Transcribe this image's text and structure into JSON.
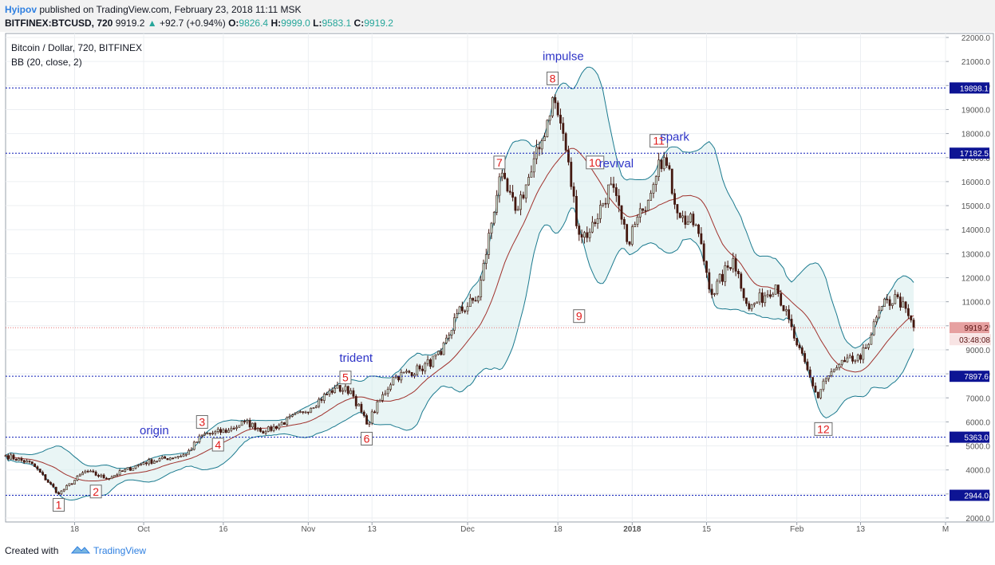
{
  "header": {
    "author": "Hyipov",
    "published": "published on TradingView.com, February 23, 2018 11:11 MSK",
    "symbol": "BITFINEX:BTCUSD, 720",
    "last": "9919.2",
    "change": "+92.7 (+0.94%)",
    "open_label": "O:",
    "open": "9826.4",
    "high_label": "H:",
    "high": "9999.0",
    "low_label": "L:",
    "low": "9583.1",
    "close_label": "C:",
    "close": "9919.2"
  },
  "footer": {
    "created_with": "Created with",
    "brand": "TradingView"
  },
  "chart_data": {
    "type": "candlestick",
    "title": "Bitcoin / Dollar, 720, BITFINEX",
    "indicator": "BB (20, close, 2)",
    "ylim": [
      2000,
      22500
    ],
    "y_ticks": [
      2000,
      3000,
      4000,
      5000,
      6000,
      7000,
      8000,
      9000,
      10000,
      11000,
      12000,
      13000,
      14000,
      15000,
      16000,
      17000,
      18000,
      19000,
      20000,
      21000,
      22000
    ],
    "y_tick_labels": [
      "2000.0",
      "3000.0",
      "4000.0",
      "5000.0",
      "6000.0",
      "7000.0",
      "8000.0",
      "9000.0",
      "10000.0",
      "11000.0",
      "12000.0",
      "13000.0",
      "14000.0",
      "15000.0",
      "16000.0",
      "17000.0",
      "18000.0",
      "19000.0",
      "20000.0",
      "21000.0",
      "22000.0"
    ],
    "x_range": [
      "2017-09-05",
      "2018-03-01"
    ],
    "x_ticks": [
      {
        "date": "2017-09-18",
        "label": "18",
        "bold": false
      },
      {
        "date": "2017-10-01",
        "label": "Oct",
        "bold": false
      },
      {
        "date": "2017-10-16",
        "label": "16",
        "bold": false
      },
      {
        "date": "2017-11-01",
        "label": "Nov",
        "bold": false
      },
      {
        "date": "2017-11-13",
        "label": "13",
        "bold": false
      },
      {
        "date": "2017-12-01",
        "label": "Dec",
        "bold": false
      },
      {
        "date": "2017-12-18",
        "label": "18",
        "bold": false
      },
      {
        "date": "2018-01-01",
        "label": "2018",
        "bold": true
      },
      {
        "date": "2018-01-15",
        "label": "15",
        "bold": false
      },
      {
        "date": "2018-02-01",
        "label": "Feb",
        "bold": false
      },
      {
        "date": "2018-02-13",
        "label": "13",
        "bold": false
      },
      {
        "date": "2018-03-01",
        "label": "M",
        "bold": false
      }
    ],
    "key_points": [
      {
        "date": "2017-09-05",
        "price": 4600
      },
      {
        "date": "2017-09-10",
        "price": 4250
      },
      {
        "date": "2017-09-15",
        "price": 3000
      },
      {
        "date": "2017-09-20",
        "price": 3950
      },
      {
        "date": "2017-09-24",
        "price": 3650
      },
      {
        "date": "2017-10-01",
        "price": 4300
      },
      {
        "date": "2017-10-09",
        "price": 4650
      },
      {
        "date": "2017-10-12",
        "price": 5450
      },
      {
        "date": "2017-10-17",
        "price": 5650
      },
      {
        "date": "2017-10-20",
        "price": 6000
      },
      {
        "date": "2017-10-24",
        "price": 5600
      },
      {
        "date": "2017-10-31",
        "price": 6400
      },
      {
        "date": "2017-11-06",
        "price": 7400
      },
      {
        "date": "2017-11-09",
        "price": 7300
      },
      {
        "date": "2017-11-12",
        "price": 5900
      },
      {
        "date": "2017-11-17",
        "price": 7850
      },
      {
        "date": "2017-11-22",
        "price": 8200
      },
      {
        "date": "2017-11-26",
        "price": 8800
      },
      {
        "date": "2017-11-29",
        "price": 10500
      },
      {
        "date": "2017-12-03",
        "price": 11200
      },
      {
        "date": "2017-12-07",
        "price": 16200
      },
      {
        "date": "2017-12-10",
        "price": 14800
      },
      {
        "date": "2017-12-13",
        "price": 16400
      },
      {
        "date": "2017-12-15",
        "price": 17700
      },
      {
        "date": "2017-12-17",
        "price": 19500
      },
      {
        "date": "2017-12-19",
        "price": 18000
      },
      {
        "date": "2017-12-22",
        "price": 13800
      },
      {
        "date": "2017-12-24",
        "price": 13900
      },
      {
        "date": "2017-12-28",
        "price": 15900
      },
      {
        "date": "2017-12-31",
        "price": 13500
      },
      {
        "date": "2018-01-03",
        "price": 14800
      },
      {
        "date": "2018-01-06",
        "price": 16900
      },
      {
        "date": "2018-01-07",
        "price": 17000
      },
      {
        "date": "2018-01-10",
        "price": 14500
      },
      {
        "date": "2018-01-13",
        "price": 14200
      },
      {
        "date": "2018-01-16",
        "price": 11300
      },
      {
        "date": "2018-01-20",
        "price": 12800
      },
      {
        "date": "2018-01-23",
        "price": 10700
      },
      {
        "date": "2018-01-28",
        "price": 11700
      },
      {
        "date": "2018-02-01",
        "price": 9200
      },
      {
        "date": "2018-02-05",
        "price": 7000
      },
      {
        "date": "2018-02-06",
        "price": 7700
      },
      {
        "date": "2018-02-10",
        "price": 8500
      },
      {
        "date": "2018-02-13",
        "price": 8600
      },
      {
        "date": "2018-02-17",
        "price": 10800
      },
      {
        "date": "2018-02-20",
        "price": 11200
      },
      {
        "date": "2018-02-23",
        "price": 9919.2
      }
    ],
    "levels": [
      {
        "price": 19898.1,
        "label": "19898.1"
      },
      {
        "price": 17182.5,
        "label": "17182.5"
      },
      {
        "price": 7897.6,
        "label": "7897.6"
      },
      {
        "price": 5363.0,
        "label": "5363.0"
      },
      {
        "price": 2944.0,
        "label": "2944.0"
      }
    ],
    "last_price": {
      "price": 9919.2,
      "label": "9919.2",
      "countdown": "03:48:08"
    },
    "markers": [
      {
        "label": "1",
        "date": "2017-09-15",
        "price": 2944,
        "pos": "below"
      },
      {
        "label": "2",
        "date": "2017-09-22",
        "price": 3500,
        "pos": "below"
      },
      {
        "label": "3",
        "date": "2017-10-12",
        "price": 5600,
        "pos": "above"
      },
      {
        "label": "4",
        "date": "2017-10-15",
        "price": 5450,
        "pos": "below"
      },
      {
        "label": "5",
        "date": "2017-11-08",
        "price": 7450,
        "pos": "above"
      },
      {
        "label": "6",
        "date": "2017-11-12",
        "price": 5700,
        "pos": "below"
      },
      {
        "label": "7",
        "date": "2017-12-07",
        "price": 16400,
        "pos": "above"
      },
      {
        "label": "8",
        "date": "2017-12-17",
        "price": 19898,
        "pos": "above"
      },
      {
        "label": "9",
        "date": "2017-12-22",
        "price": 10800,
        "pos": "below"
      },
      {
        "label": "10",
        "date": "2017-12-25",
        "price": 16400,
        "pos": "above"
      },
      {
        "label": "11",
        "date": "2018-01-06",
        "price": 17300,
        "pos": "above"
      },
      {
        "label": "12",
        "date": "2018-02-06",
        "price": 6100,
        "pos": "below"
      }
    ],
    "annotations": [
      {
        "text": "origin",
        "date": "2017-10-03",
        "price": 5480
      },
      {
        "text": "trident",
        "date": "2017-11-10",
        "price": 8500
      },
      {
        "text": "impulse",
        "date": "2017-12-19",
        "price": 21050
      },
      {
        "text": "revival",
        "date": "2017-12-29",
        "price": 16600
      },
      {
        "text": "spark",
        "date": "2018-01-09",
        "price": 17700
      }
    ],
    "colors": {
      "up": "#c9e3d5",
      "down": "#43170f",
      "band": "#1b7a8f",
      "band_fill": "#d7ecec",
      "basis": "#a0322d",
      "level": "#0d1db8",
      "marker": "#e01a1a",
      "text": "#2e34c7",
      "last": "#e6a0a0"
    }
  }
}
